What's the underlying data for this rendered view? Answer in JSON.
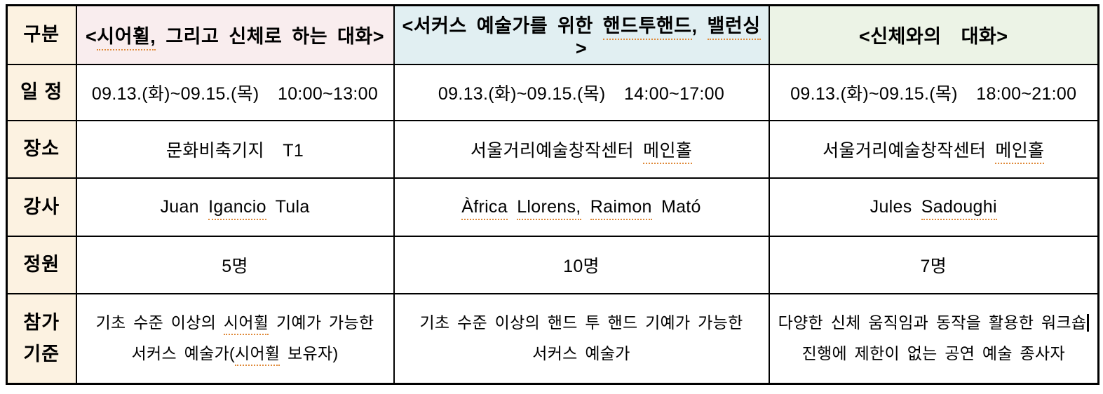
{
  "colors": {
    "label_column_bg": "#fcf2e1",
    "program1_header_bg": "#f9edee",
    "program2_header_bg": "#e1eff2",
    "program3_header_bg": "#ecf3e6",
    "spellcheck_underline": "#df8a3a",
    "border": "#000000",
    "text": "#000000"
  },
  "table": {
    "corner": [
      [
        {
          "t": "구분"
        }
      ]
    ],
    "programs": [
      {
        "title": [
          [
            {
              "t": "<"
            },
            {
              "t": "시어휠,",
              "u": 1
            },
            {
              "t": " 그리고 신체로 하는 대화>"
            }
          ]
        ]
      },
      {
        "title": [
          [
            {
              "t": "<서커스 예술가를 위한 "
            },
            {
              "t": "핸드투핸드",
              "u": 1
            },
            {
              "t": ", "
            },
            {
              "t": "밸런싱",
              "u": 1
            },
            {
              "t": ">"
            }
          ]
        ]
      },
      {
        "title": [
          [
            {
              "t": "<신체와의  대화>"
            }
          ]
        ]
      }
    ],
    "rows": [
      {
        "label": [
          [
            {
              "t": "일 정"
            }
          ]
        ],
        "cells": [
          [
            [
              {
                "t": "09.13.(화)~09.15.(목)  10:00~13:00"
              }
            ]
          ],
          [
            [
              {
                "t": "09.13.(화)~09.15.(목)  14:00~17:00"
              }
            ]
          ],
          [
            [
              {
                "t": "09.13.(화)~09.15.(목)  18:00~21:00"
              }
            ]
          ]
        ]
      },
      {
        "label": [
          [
            {
              "t": "장소"
            }
          ]
        ],
        "cells": [
          [
            [
              {
                "t": "문화비축기지  T1"
              }
            ]
          ],
          [
            [
              {
                "t": "서울거리예술창작센터 "
              },
              {
                "t": "메인홀",
                "u": 1
              }
            ]
          ],
          [
            [
              {
                "t": "서울거리예술창작센터 "
              },
              {
                "t": "메인홀",
                "u": 1
              }
            ]
          ]
        ]
      },
      {
        "label": [
          [
            {
              "t": "강사"
            }
          ]
        ],
        "cells": [
          [
            [
              {
                "t": "Juan "
              },
              {
                "t": "Igancio",
                "u": 1
              },
              {
                "t": " Tula"
              }
            ]
          ],
          [
            [
              {
                "t": "Àfrica",
                "u": 1
              },
              {
                "t": " "
              },
              {
                "t": "Llorens,",
                "u": 1
              },
              {
                "t": " "
              },
              {
                "t": "Raimon",
                "u": 1
              },
              {
                "t": " Mató"
              }
            ]
          ],
          [
            [
              {
                "t": "Jules "
              },
              {
                "t": "Sadoughi",
                "u": 1
              }
            ]
          ]
        ]
      },
      {
        "label": [
          [
            {
              "t": "정원"
            }
          ]
        ],
        "cells": [
          [
            [
              {
                "t": "5명"
              }
            ]
          ],
          [
            [
              {
                "t": "10명"
              }
            ]
          ],
          [
            [
              {
                "t": "7명"
              }
            ]
          ]
        ]
      },
      {
        "label": [
          [
            {
              "t": "참가"
            }
          ],
          [
            {
              "t": "기준"
            }
          ]
        ],
        "cells": [
          [
            [
              {
                "t": "기초 수준 이상의 "
              },
              {
                "t": "시어휠",
                "u": 1
              },
              {
                "t": " 기예가 가능한"
              }
            ],
            [
              {
                "t": "서커스 예술가("
              },
              {
                "t": "시어휠",
                "u": 1
              },
              {
                "t": " 보유자)"
              }
            ]
          ],
          [
            [
              {
                "t": "기초 수준 이상의 핸드 투 핸드 기예가 가능한"
              }
            ],
            [
              {
                "t": "서커스 예술가"
              }
            ]
          ],
          [
            [
              {
                "t": "다양한 신체 움직임과 동작을 활용한 워크숍"
              },
              {
                "t": "|",
                "c": 1
              }
            ],
            [
              {
                "t": "진행에 제한이 없는 공연 예술 종사자"
              }
            ]
          ]
        ]
      }
    ]
  }
}
